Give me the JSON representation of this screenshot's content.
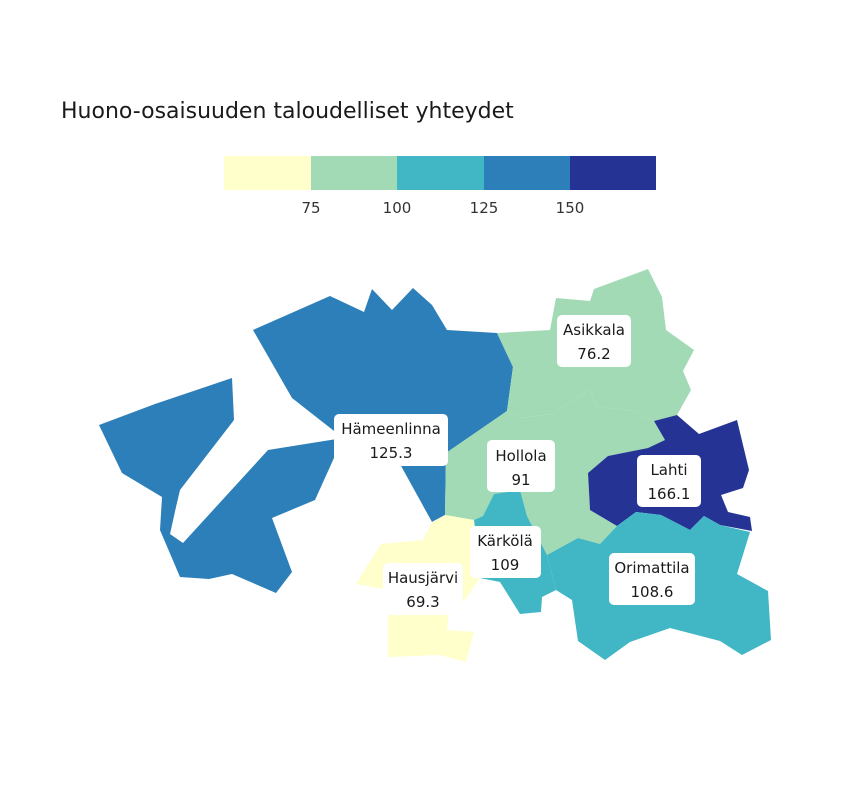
{
  "title": "Huono-osaisuuden taloudelliset yhteydet",
  "legend": {
    "colors": [
      "#ffffcc",
      "#a1dab4",
      "#41b6c4",
      "#2c7fb8",
      "#253494"
    ],
    "ticks": [
      "75",
      "100",
      "125",
      "150"
    ]
  },
  "regions": [
    {
      "name": "Hämeenlinna",
      "value": "125.3",
      "color": "#2c7fb8"
    },
    {
      "name": "Asikkala",
      "value": "76.2",
      "color": "#a1dab4"
    },
    {
      "name": "Hollola",
      "value": "91",
      "color": "#a1dab4"
    },
    {
      "name": "Lahti",
      "value": "166.1",
      "color": "#253494"
    },
    {
      "name": "Kärkölä",
      "value": "109",
      "color": "#41b6c4"
    },
    {
      "name": "Orimattila",
      "value": "108.6",
      "color": "#41b6c4"
    },
    {
      "name": "Hausjärvi",
      "value": "69.3",
      "color": "#ffffcc"
    }
  ]
}
